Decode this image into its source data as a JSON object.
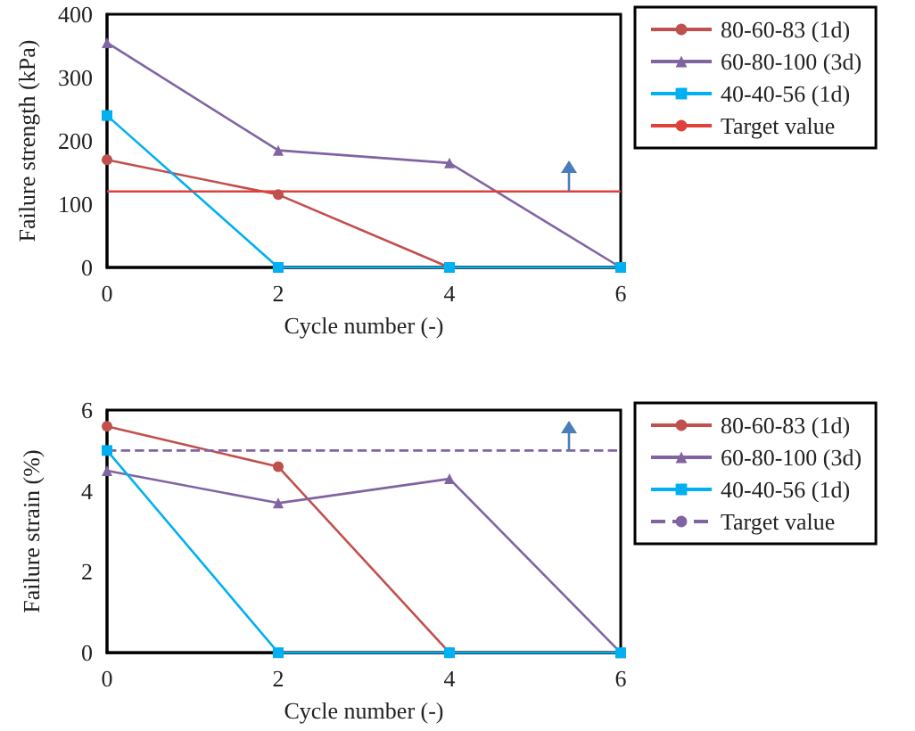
{
  "chart_data": [
    {
      "type": "line",
      "xlabel": "Cycle number (-)",
      "ylabel": "Failure strength (kPa)",
      "xlim": [
        0,
        6
      ],
      "xticks": [
        0,
        2,
        4,
        6
      ],
      "ylim": [
        0,
        400
      ],
      "yticks": [
        0,
        100,
        200,
        300,
        400
      ],
      "grid": false,
      "legend": "right",
      "series": [
        {
          "name": "80-60-83 (1d)",
          "color": "#c0504d",
          "marker": "circle",
          "line_style": "solid",
          "x": [
            0,
            2,
            4
          ],
          "values": [
            170,
            115,
            0
          ]
        },
        {
          "name": "60-80-100 (3d)",
          "color": "#8064a2",
          "marker": "triangle",
          "line_style": "solid",
          "x": [
            0,
            2,
            4,
            6
          ],
          "values": [
            355,
            185,
            165,
            0
          ]
        },
        {
          "name": "40-40-56 (1d)",
          "color": "#00b0f0",
          "marker": "square",
          "line_style": "solid",
          "x": [
            0,
            2,
            4,
            6
          ],
          "values": [
            240,
            0,
            0,
            0
          ]
        },
        {
          "name": "Target value",
          "color": "#e0403a",
          "marker": "none",
          "line_style": "solid",
          "x": [
            0,
            6
          ],
          "values": [
            120,
            120
          ]
        }
      ]
    },
    {
      "type": "line",
      "xlabel": "Cycle number (-)",
      "ylabel": "Failure strain (%)",
      "xlim": [
        0,
        6
      ],
      "xticks": [
        0,
        2,
        4,
        6
      ],
      "ylim": [
        0,
        6
      ],
      "yticks": [
        0,
        2,
        4,
        6
      ],
      "grid": false,
      "legend": "right",
      "series": [
        {
          "name": "80-60-83 (1d)",
          "color": "#c0504d",
          "marker": "circle",
          "line_style": "solid",
          "x": [
            0,
            2,
            4
          ],
          "values": [
            5.6,
            4.6,
            0
          ]
        },
        {
          "name": "60-80-100 (3d)",
          "color": "#8064a2",
          "marker": "triangle",
          "line_style": "solid",
          "x": [
            0,
            2,
            4,
            6
          ],
          "values": [
            4.5,
            3.7,
            4.3,
            0
          ]
        },
        {
          "name": "40-40-56 (1d)",
          "color": "#00b0f0",
          "marker": "square",
          "line_style": "solid",
          "x": [
            0,
            2,
            4,
            6
          ],
          "values": [
            5.0,
            0,
            0,
            0
          ]
        },
        {
          "name": "Target value",
          "color": "#8064a2",
          "marker": "none",
          "line_style": "dashed",
          "x": [
            0,
            6
          ],
          "values": [
            5,
            5
          ]
        }
      ]
    }
  ]
}
